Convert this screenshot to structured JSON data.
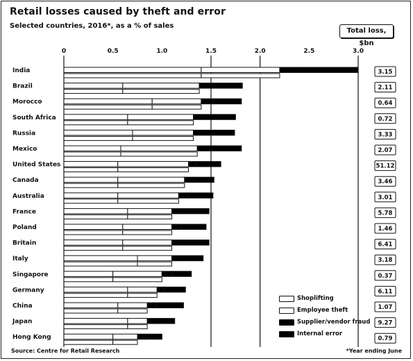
{
  "header": {
    "title": "Retail losses caused by theft and error",
    "subtitle": "Selected countries, 2016*, as a % of sales",
    "total_label": "Total loss, $bn"
  },
  "footer": {
    "source": "Source: Centre for Retail Research",
    "footnote": "*Year ending June"
  },
  "legend": [
    {
      "name": "Shoplifting",
      "color": "#ffffff"
    },
    {
      "name": "Employee theft",
      "color": "#ffffff"
    },
    {
      "name": "Supplier/vendor fraud",
      "color": "#000000"
    },
    {
      "name": "Internal error",
      "color": "#000000"
    }
  ],
  "chart_data": {
    "type": "bar",
    "orientation": "horizontal",
    "stacked": true,
    "title": "Retail losses caused by theft and error",
    "subtitle": "Selected countries, 2016*, as a % of sales",
    "xlim": [
      0,
      3.0
    ],
    "xticks": [
      "0",
      "0.5",
      "1.0",
      "1.5",
      "2.0",
      "2.5",
      "3.0"
    ],
    "grid": "vertical at 1.5, 2.0 and 3.0",
    "legend_position": "bottom-right",
    "categories": [
      "India",
      "Brazil",
      "Morocco",
      "South Africa",
      "Russia",
      "Mexico",
      "United States",
      "Canada",
      "Australia",
      "France",
      "Poland",
      "Britain",
      "Italy",
      "Singapore",
      "Germany",
      "China",
      "Japan",
      "Hong Kong"
    ],
    "series": [
      {
        "name": "Shoplifting",
        "values": [
          1.4,
          0.6,
          0.9,
          0.65,
          0.7,
          0.58,
          0.55,
          0.55,
          0.55,
          0.65,
          0.6,
          0.6,
          0.75,
          0.5,
          0.65,
          0.55,
          0.65,
          0.5
        ]
      },
      {
        "name": "Employee theft",
        "values": [
          0.8,
          0.78,
          0.5,
          0.67,
          0.62,
          0.78,
          0.72,
          0.68,
          0.62,
          0.45,
          0.5,
          0.5,
          0.35,
          0.5,
          0.3,
          0.3,
          0.2,
          0.25
        ]
      },
      {
        "name": "Supplier/vendor fraud",
        "values": [
          0.22,
          0.14,
          0.13,
          0.13,
          0.12,
          0.15,
          0.08,
          0.1,
          0.1,
          0.1,
          0.1,
          0.1,
          0.1,
          0.1,
          0.07,
          0.1,
          0.1,
          0.08
        ]
      },
      {
        "name": "Internal error",
        "values": [
          0.58,
          0.3,
          0.28,
          0.3,
          0.3,
          0.3,
          0.25,
          0.2,
          0.25,
          0.28,
          0.25,
          0.28,
          0.22,
          0.2,
          0.22,
          0.27,
          0.18,
          0.17
        ]
      }
    ],
    "total_loss_bn": [
      "3.15",
      "2.11",
      "0.64",
      "0.72",
      "3.33",
      "2.07",
      "51.12",
      "3.46",
      "3.01",
      "5.78",
      "1.46",
      "6.41",
      "3.18",
      "0.37",
      "6.11",
      "1.07",
      "9.27",
      "0.79"
    ]
  }
}
